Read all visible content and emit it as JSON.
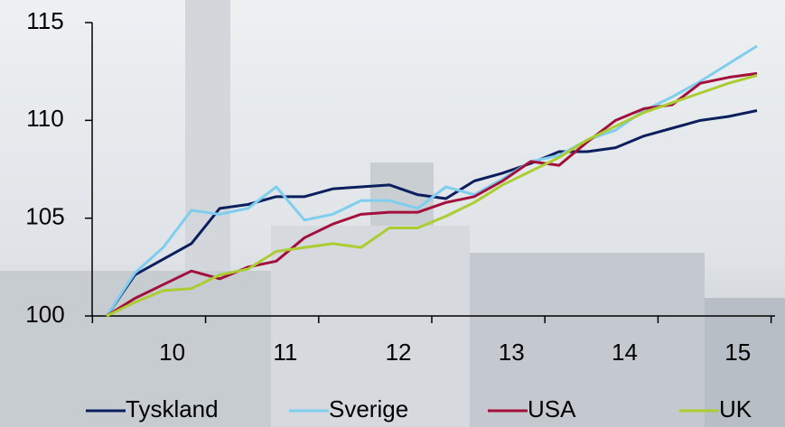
{
  "chart_data": {
    "type": "line",
    "categories": [
      null,
      null,
      "10",
      null,
      null,
      null,
      "11",
      null,
      null,
      null,
      "12",
      null,
      null,
      null,
      "13",
      null,
      null,
      null,
      "14",
      null,
      null,
      null,
      "15",
      null
    ],
    "series": [
      {
        "name": "Tyskland",
        "color": "#0b1f5e",
        "values": [
          100,
          102.1,
          102.9,
          103.7,
          105.5,
          105.7,
          106.1,
          106.1,
          106.5,
          106.6,
          106.7,
          106.2,
          106.0,
          106.9,
          107.3,
          107.8,
          108.4,
          108.4,
          108.6,
          109.2,
          109.6,
          110.0,
          110.2,
          110.5
        ]
      },
      {
        "name": "Sverige",
        "color": "#7fcdef",
        "values": [
          100,
          102.2,
          103.5,
          105.4,
          105.2,
          105.5,
          106.6,
          104.9,
          105.2,
          105.9,
          105.9,
          105.5,
          106.6,
          106.2,
          107.0,
          107.9,
          108.2,
          109.0,
          109.5,
          110.5,
          111.2,
          112.0,
          112.9,
          113.8
        ]
      },
      {
        "name": "USA",
        "color": "#a3103c",
        "values": [
          100,
          100.9,
          101.6,
          102.3,
          101.9,
          102.5,
          102.8,
          104.0,
          104.7,
          105.2,
          105.3,
          105.3,
          105.8,
          106.1,
          106.9,
          107.9,
          107.7,
          108.9,
          110.0,
          110.6,
          110.8,
          111.9,
          112.2,
          112.4
        ]
      },
      {
        "name": "UK",
        "color": "#abcd32",
        "values": [
          100,
          100.7,
          101.3,
          101.4,
          102.1,
          102.4,
          103.3,
          103.5,
          103.7,
          103.5,
          104.5,
          104.5,
          105.1,
          105.8,
          106.7,
          107.4,
          108.1,
          109.0,
          109.7,
          110.4,
          110.9,
          111.4,
          111.9,
          112.3
        ]
      }
    ],
    "ylim": [
      100,
      115
    ],
    "yticks": [
      100,
      105,
      110,
      115
    ],
    "grid": false
  }
}
